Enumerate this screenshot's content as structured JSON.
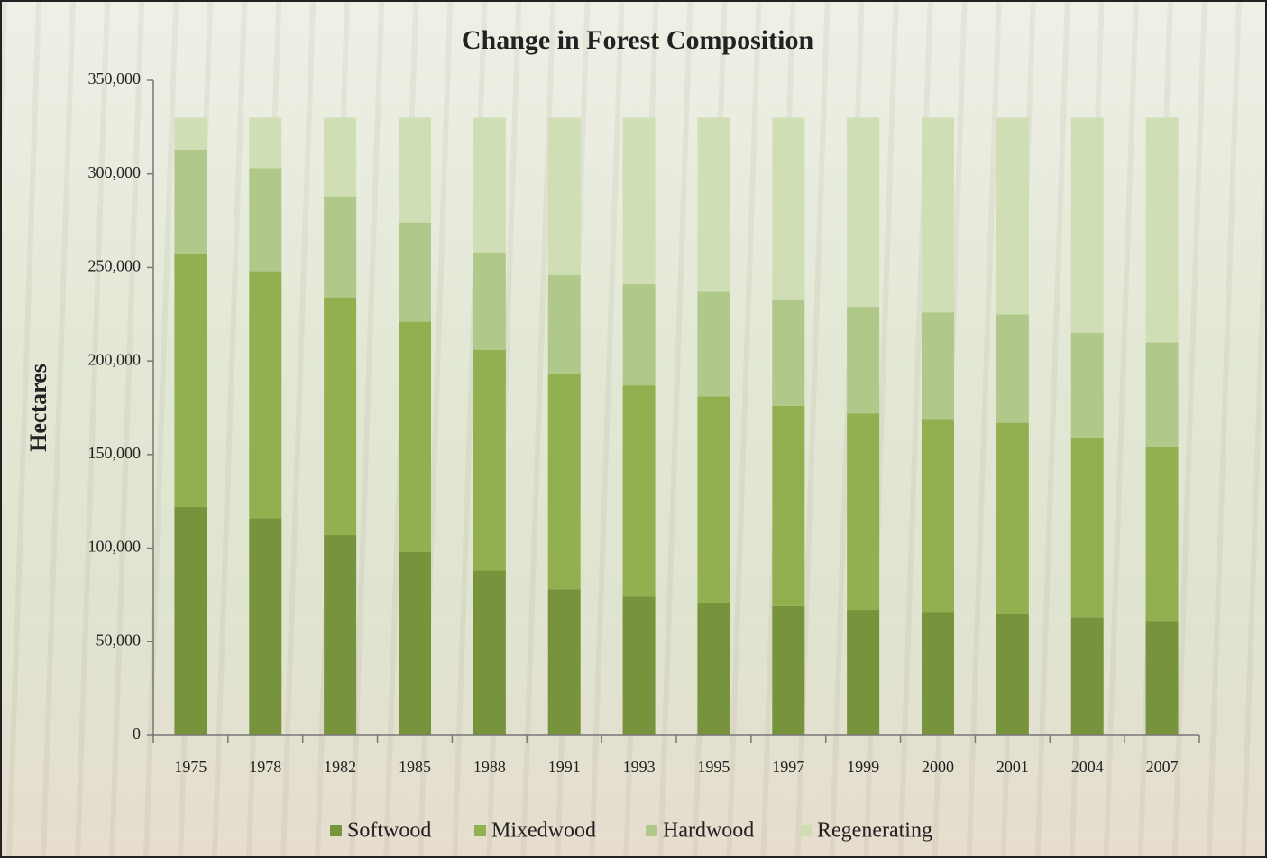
{
  "chart_data": {
    "type": "stacked_bar",
    "title": "Change in Forest Composition",
    "y_label": "Hectares",
    "categories": [
      "1975",
      "1978",
      "1982",
      "1985",
      "1988",
      "1991",
      "1993",
      "1995",
      "1997",
      "1999",
      "2000",
      "2001",
      "2004",
      "2007"
    ],
    "series": [
      {
        "name": "Softwood",
        "color": "#77933c",
        "values": [
          122000,
          116000,
          107000,
          98000,
          88000,
          78000,
          74000,
          71000,
          69000,
          67000,
          66000,
          65000,
          63000,
          61000
        ]
      },
      {
        "name": "Mixedwood",
        "color": "#92b050",
        "values": [
          135000,
          132000,
          127000,
          123000,
          118000,
          115000,
          113000,
          110000,
          107000,
          105000,
          103000,
          102000,
          96000,
          93000
        ]
      },
      {
        "name": "Hardwood",
        "color": "#b0c88a",
        "values": [
          56000,
          55000,
          54000,
          53000,
          52000,
          53000,
          54000,
          56000,
          57000,
          57000,
          57000,
          58000,
          56000,
          56000
        ]
      },
      {
        "name": "Regenerating",
        "color": "#cfdeb4",
        "values": [
          17000,
          27000,
          42000,
          56000,
          72000,
          84000,
          89000,
          93000,
          97000,
          101000,
          104000,
          105000,
          115000,
          120000
        ]
      }
    ],
    "ylim": [
      0,
      350000
    ],
    "yticks": [
      0,
      {
        "value": 50000,
        "label": "50,000"
      },
      {
        "value": 100000,
        "label": "100,000"
      },
      {
        "value": 150000,
        "label": "150,000"
      },
      {
        "value": 200000,
        "label": "200,000"
      },
      {
        "value": 250000,
        "label": "250,000"
      },
      {
        "value": 300000,
        "label": "300,000"
      },
      {
        "value": 350000,
        "label": "350,000"
      }
    ],
    "legend": "bottom"
  }
}
